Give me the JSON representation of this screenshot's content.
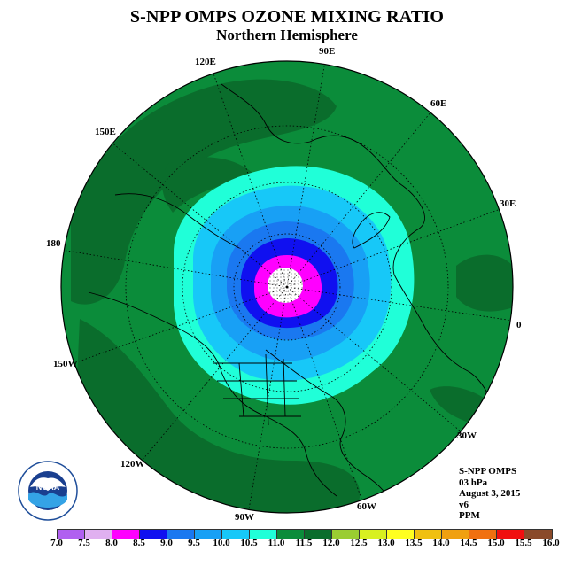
{
  "header": {
    "title": "S-NPP OMPS OZONE MIXING RATIO",
    "subtitle": "Northern Hemisphere"
  },
  "map": {
    "projection": "north-polar-stereographic",
    "longitude_labels": [
      "0",
      "30E",
      "60E",
      "90E",
      "120E",
      "150E",
      "180",
      "150W",
      "120W",
      "90W",
      "60W",
      "30W"
    ],
    "ozone_bands_ppm": [
      {
        "range": "8.0-8.5",
        "color": "#ff00ff"
      },
      {
        "range": "8.5-9.0",
        "color": "#1010f0"
      },
      {
        "range": "9.0-9.5",
        "color": "#1a78f0"
      },
      {
        "range": "9.5-10.0",
        "color": "#18a0f5"
      },
      {
        "range": "10.0-10.5",
        "color": "#17c8f8"
      },
      {
        "range": "10.5-11.0",
        "color": "#20ffd8"
      },
      {
        "range": "11.0-11.5",
        "color": "#0b8c3a"
      },
      {
        "range": "11.5-12.0",
        "color": "#0a6d2c"
      }
    ],
    "center_value": "no data"
  },
  "info": {
    "instrument": "S-NPP OMPS",
    "level": "03 hPa",
    "date": "August 3, 2015",
    "version": "v6",
    "units": "PPM"
  },
  "logo": {
    "text": "NOAA",
    "icon": "noaa-logo-icon"
  },
  "colorbar": {
    "colors": [
      "#b060f0",
      "#e0b0f0",
      "#ff00ff",
      "#1010f0",
      "#1a78f0",
      "#18a0f5",
      "#17c8f8",
      "#20ffd8",
      "#0b8c3a",
      "#0a6d2c",
      "#9acd32",
      "#d8f020",
      "#ffff20",
      "#f0c010",
      "#f0a010",
      "#f07010",
      "#f01010",
      "#8a4a2a"
    ],
    "ticks": [
      "7.0",
      "7.5",
      "8.0",
      "8.5",
      "9.0",
      "9.5",
      "10.0",
      "10.5",
      "11.0",
      "11.5",
      "12.0",
      "12.5",
      "13.0",
      "13.5",
      "14.0",
      "14.5",
      "15.0",
      "15.5",
      "16.0"
    ]
  }
}
